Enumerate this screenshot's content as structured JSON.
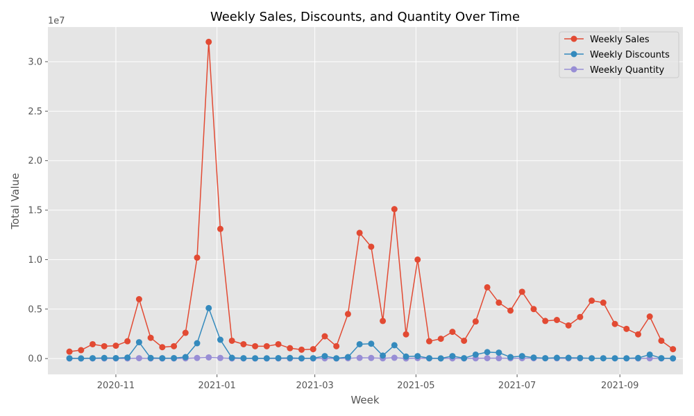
{
  "chart_data": {
    "type": "line",
    "title": "Weekly Sales, Discounts, and Quantity Over Time",
    "xlabel": "Week",
    "ylabel": "Total Value",
    "y_offset_label": "1e7",
    "y_scale": 10000000,
    "ylim": [
      -1600000,
      33500000
    ],
    "xlim": [
      "2020-09-21",
      "2021-10-09"
    ],
    "y_ticks": [
      0,
      5000000,
      10000000,
      15000000,
      20000000,
      25000000,
      30000000
    ],
    "y_tick_labels": [
      "0.0",
      "0.5",
      "1.0",
      "1.5",
      "2.0",
      "2.5",
      "3.0"
    ],
    "x_ticks": [
      "2020-11-01",
      "2021-01-01",
      "2021-03-01",
      "2021-05-01",
      "2021-07-01",
      "2021-09-01"
    ],
    "x_tick_labels": [
      "2020-11",
      "2021-01",
      "2021-03",
      "2021-05",
      "2021-07",
      "2021-09"
    ],
    "grid": true,
    "legend_position": "top-right",
    "x": [
      "2020-10-04",
      "2020-10-11",
      "2020-10-18",
      "2020-10-25",
      "2020-11-01",
      "2020-11-08",
      "2020-11-15",
      "2020-11-22",
      "2020-11-29",
      "2020-12-06",
      "2020-12-13",
      "2020-12-20",
      "2020-12-27",
      "2021-01-03",
      "2021-01-10",
      "2021-01-17",
      "2021-01-24",
      "2021-01-31",
      "2021-02-07",
      "2021-02-14",
      "2021-02-21",
      "2021-02-28",
      "2021-03-07",
      "2021-03-14",
      "2021-03-21",
      "2021-03-28",
      "2021-04-04",
      "2021-04-11",
      "2021-04-18",
      "2021-04-25",
      "2021-05-02",
      "2021-05-09",
      "2021-05-16",
      "2021-05-23",
      "2021-05-30",
      "2021-06-06",
      "2021-06-13",
      "2021-06-20",
      "2021-06-27",
      "2021-07-04",
      "2021-07-11",
      "2021-07-18",
      "2021-07-25",
      "2021-08-01",
      "2021-08-08",
      "2021-08-15",
      "2021-08-22",
      "2021-08-29",
      "2021-09-05",
      "2021-09-12",
      "2021-09-19",
      "2021-09-26",
      "2021-10-03"
    ],
    "series": [
      {
        "name": "Weekly Sales",
        "color": "#E24A33",
        "values": [
          700000,
          850000,
          1450000,
          1250000,
          1300000,
          1750000,
          6000000,
          2100000,
          1150000,
          1250000,
          2600000,
          10200000,
          32000000,
          13100000,
          1800000,
          1450000,
          1250000,
          1250000,
          1450000,
          1050000,
          900000,
          950000,
          2250000,
          1250000,
          4500000,
          12700000,
          11300000,
          3800000,
          15100000,
          2450000,
          10000000,
          1750000,
          2000000,
          2700000,
          1800000,
          3750000,
          7200000,
          5650000,
          4850000,
          6750000,
          5000000,
          3800000,
          3900000,
          3350000,
          4200000,
          5850000,
          5650000,
          3500000,
          3000000,
          2450000,
          4250000,
          1800000,
          950000
        ]
      },
      {
        "name": "Weekly Discounts",
        "color": "#348ABD",
        "values": [
          30000,
          20000,
          40000,
          60000,
          50000,
          100000,
          1650000,
          60000,
          40000,
          50000,
          150000,
          1550000,
          5100000,
          1900000,
          80000,
          40000,
          30000,
          30000,
          50000,
          60000,
          30000,
          40000,
          250000,
          30000,
          150000,
          1450000,
          1500000,
          300000,
          1350000,
          200000,
          250000,
          40000,
          20000,
          250000,
          40000,
          400000,
          650000,
          600000,
          150000,
          250000,
          100000,
          40000,
          80000,
          80000,
          60000,
          30000,
          30000,
          30000,
          30000,
          60000,
          400000,
          40000,
          20000
        ]
      },
      {
        "name": "Weekly Quantity",
        "color": "#988ED5",
        "values": [
          10000,
          10000,
          15000,
          12000,
          12000,
          15000,
          40000,
          15000,
          10000,
          12000,
          20000,
          60000,
          120000,
          60000,
          15000,
          12000,
          10000,
          10000,
          12000,
          10000,
          8000,
          9000,
          20000,
          10000,
          30000,
          70000,
          60000,
          25000,
          80000,
          15000,
          50000,
          12000,
          15000,
          20000,
          15000,
          25000,
          40000,
          35000,
          30000,
          40000,
          30000,
          25000,
          25000,
          20000,
          25000,
          30000,
          30000,
          20000,
          18000,
          15000,
          25000,
          12000,
          8000
        ]
      }
    ]
  }
}
